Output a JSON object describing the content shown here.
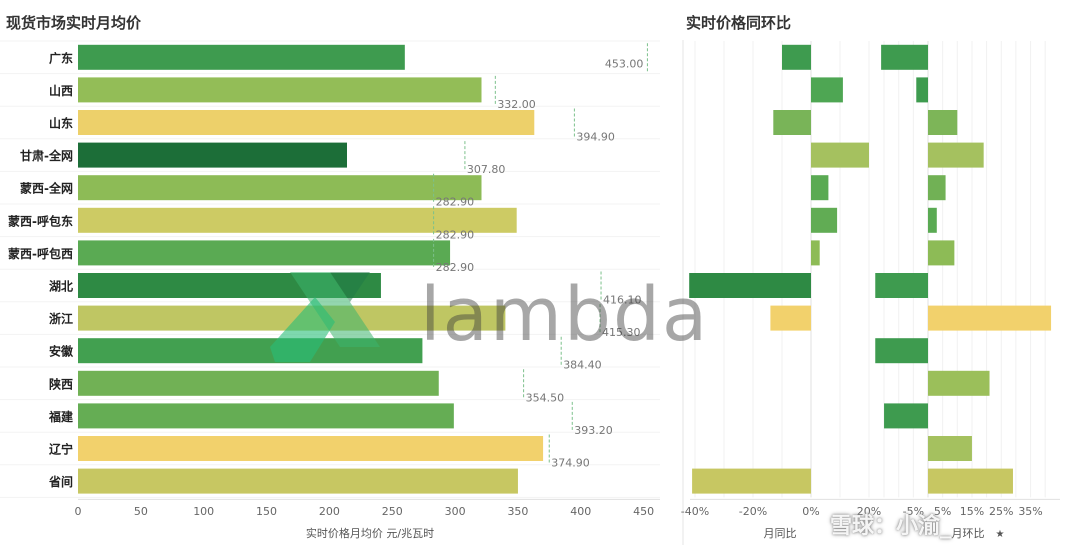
{
  "chart_data": [
    {
      "type": "bar",
      "title": "现货市场实时月均价",
      "xlabel": "实时价格月均价 元/兆瓦时",
      "ylabel": "",
      "xlim": [
        0,
        470
      ],
      "ticks": [
        "0",
        "50",
        "100",
        "150",
        "200",
        "250",
        "300",
        "350",
        "400",
        "450"
      ],
      "categories": [
        "广东",
        "山西",
        "山东",
        "甘肃-全网",
        "蒙西-全网",
        "蒙西-呼包东",
        "蒙西-呼包西",
        "湖北",
        "浙江",
        "安徽",
        "陕西",
        "福建",
        "辽宁",
        "省间"
      ],
      "values": [
        260,
        321,
        363,
        214,
        321,
        349,
        296,
        241,
        340,
        274,
        287,
        299,
        370,
        350
      ],
      "colors": [
        "#3e9b4f",
        "#93bd57",
        "#edd06a",
        "#1c6e38",
        "#8dbb56",
        "#cdcb64",
        "#5aaa53",
        "#2e8a44",
        "#bfc663",
        "#42a050",
        "#71b155",
        "#65ad54",
        "#f2d16c",
        "#c7c762"
      ],
      "reference": [
        453.0,
        332.0,
        394.9,
        307.8,
        282.9,
        282.9,
        282.9,
        416.1,
        415.3,
        384.4,
        354.5,
        393.2,
        374.9,
        null
      ],
      "reference_labels": [
        "453.00",
        "332.00",
        "394.90",
        "307.80",
        "282.90",
        "282.90",
        "282.90",
        "416.10",
        "415.30",
        "384.40",
        "354.50",
        "393.20",
        "374.90",
        ""
      ]
    },
    {
      "type": "bar",
      "title": "实时价格同环比",
      "panels": [
        {
          "name": "月同比",
          "xlim": [
            -45,
            40
          ],
          "ticks": [
            "-40%",
            "-20%",
            "0%",
            "20%"
          ],
          "tick_values": [
            -40,
            -20,
            0,
            20
          ],
          "values": [
            -10,
            11,
            -13,
            20,
            6,
            9,
            3,
            -42,
            -14,
            null,
            null,
            null,
            null,
            -41
          ],
          "colors": [
            "#3e9b4f",
            "#4ea653",
            "#79b458",
            "#a5c15f",
            "#5aaa53",
            "#61ac54",
            "#8dbb56",
            "#2e8a44",
            "#f2d16c",
            null,
            null,
            null,
            null,
            "#c7c762"
          ]
        },
        {
          "name": "月环比",
          "xlim": [
            -20,
            42
          ],
          "ticks": [
            "-5%",
            "5%",
            "15%",
            "25%",
            "35%"
          ],
          "tick_values": [
            -5,
            5,
            15,
            25,
            35
          ],
          "values": [
            -16,
            -4,
            10,
            19,
            6,
            3,
            9,
            -18,
            42,
            -18,
            21,
            -15,
            15,
            29
          ],
          "colors": [
            "#3e9b4f",
            "#3e9b4f",
            "#7db558",
            "#a5c15f",
            "#71b155",
            "#5aaa53",
            "#8dbb56",
            "#3e9b4f",
            "#f2d16c",
            "#3e9b4f",
            "#9bbf5a",
            "#3e9b4f",
            "#a5c15f",
            "#c7c762"
          ]
        }
      ],
      "ticks_label_extra": [
        "-5%"
      ],
      "sort_marker": "★"
    }
  ],
  "overlay": {
    "watermark_text": "lambda",
    "credit_text": "雪球：小渝_"
  }
}
